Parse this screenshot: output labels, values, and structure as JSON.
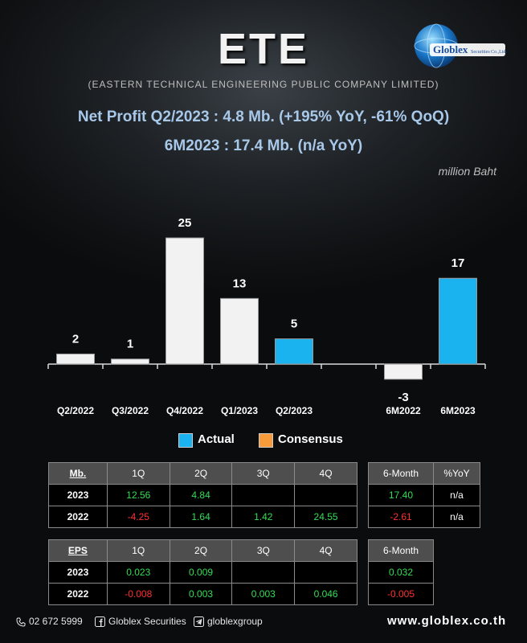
{
  "header": {
    "ticker": "ETE",
    "company": "(EASTERN TECHNICAL ENGINEERING PUBLIC COMPANY LIMITED)",
    "logo_text": "Globlex",
    "logo_sub": "Securities Co.,Ltd.",
    "headline1": "Net Profit  Q2/2023 : 4.8 Mb. (+195% YoY, -61% QoQ)",
    "headline2": "6M2023 : 17.4 Mb. (n/a YoY)",
    "unit": "million Baht"
  },
  "chart_data": {
    "type": "bar",
    "unit": "million Baht",
    "categories": [
      "Q2/2022",
      "Q3/2022",
      "Q4/2022",
      "Q1/2023",
      "Q2/2023",
      "",
      "6M2022",
      "6M2023"
    ],
    "values": [
      2,
      1,
      25,
      13,
      5,
      null,
      -3,
      17
    ],
    "value_labels": [
      "2",
      "1",
      "25",
      "13",
      "5",
      "",
      "-3",
      "17"
    ],
    "highlight": [
      false,
      false,
      false,
      false,
      true,
      false,
      false,
      true
    ],
    "colors": {
      "actual": "#1ab3f0",
      "other": "#f2f2f2",
      "consensus": "#f79a3a"
    },
    "ylim": [
      -3,
      25
    ],
    "legend": [
      "Actual",
      "Consensus"
    ],
    "legend_position": "bottom-center",
    "grid": false
  },
  "table_profit": {
    "label": "Mb.",
    "headers": [
      "1Q",
      "2Q",
      "3Q",
      "4Q"
    ],
    "rows": [
      {
        "year": "2023",
        "cells": [
          "12.56",
          "4.84",
          "",
          ""
        ]
      },
      {
        "year": "2022",
        "cells": [
          "-4.25",
          "1.64",
          "1.42",
          "24.55"
        ]
      }
    ]
  },
  "table_profit_6m": {
    "headers": [
      "6-Month",
      "%YoY"
    ],
    "rows": [
      [
        "17.40",
        "n/a"
      ],
      [
        "-2.61",
        "n/a"
      ]
    ]
  },
  "table_eps": {
    "label": "EPS",
    "headers": [
      "1Q",
      "2Q",
      "3Q",
      "4Q"
    ],
    "rows": [
      {
        "year": "2023",
        "cells": [
          "0.023",
          "0.009",
          "",
          ""
        ]
      },
      {
        "year": "2022",
        "cells": [
          "-0.008",
          "0.003",
          "0.003",
          "0.046"
        ]
      }
    ]
  },
  "table_eps_6m": {
    "headers": [
      "6-Month"
    ],
    "rows": [
      [
        "0.032"
      ],
      [
        "-0.005"
      ]
    ]
  },
  "footer": {
    "phone": "02 672 5999",
    "facebook": "Globlex Securities",
    "telegram": "globlexgroup",
    "website": "www.globlex.co.th",
    "phone_icon": "phone-icon",
    "facebook_icon": "facebook-icon",
    "telegram_icon": "telegram-icon"
  }
}
